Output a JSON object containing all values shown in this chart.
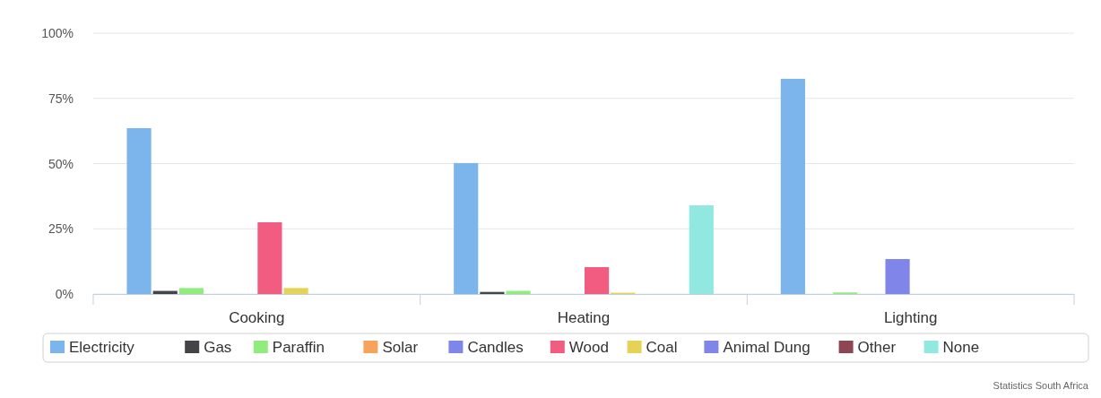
{
  "chart_data": {
    "type": "bar",
    "categories": [
      "Cooking",
      "Heating",
      "Lighting"
    ],
    "series": [
      {
        "name": "Electricity",
        "color": "#7cb5ec",
        "values": [
          63.6,
          50.2,
          82.5
        ]
      },
      {
        "name": "Gas",
        "color": "#434348",
        "values": [
          1.2,
          0.8,
          0
        ]
      },
      {
        "name": "Paraffin",
        "color": "#90ed7d",
        "values": [
          2.3,
          1.2,
          0.6
        ]
      },
      {
        "name": "Solar",
        "color": "#f7a35c",
        "values": [
          0,
          0,
          0
        ]
      },
      {
        "name": "Candles",
        "color": "#8085e9",
        "values": [
          0,
          0,
          13.4
        ]
      },
      {
        "name": "Wood",
        "color": "#f15c80",
        "values": [
          27.5,
          10.3,
          0
        ]
      },
      {
        "name": "Coal",
        "color": "#e4d354",
        "values": [
          2.3,
          0.5,
          0
        ]
      },
      {
        "name": "Animal Dung",
        "color": "#8085e8",
        "values": [
          0,
          0,
          0
        ]
      },
      {
        "name": "Other",
        "color": "#8d4654",
        "values": [
          0,
          0,
          0
        ]
      },
      {
        "name": "None",
        "color": "#91e8e1",
        "values": [
          0,
          34,
          0
        ]
      }
    ],
    "ylim": [
      0,
      100
    ],
    "yticks": [
      {
        "value": 0,
        "label": "0%"
      },
      {
        "value": 25,
        "label": "25%"
      },
      {
        "value": 50,
        "label": "50%"
      },
      {
        "value": 75,
        "label": "75%"
      },
      {
        "value": 100,
        "label": "100%"
      }
    ],
    "grid": "y",
    "legend": "bottom",
    "annotations": [
      "Statistics South Africa"
    ]
  }
}
